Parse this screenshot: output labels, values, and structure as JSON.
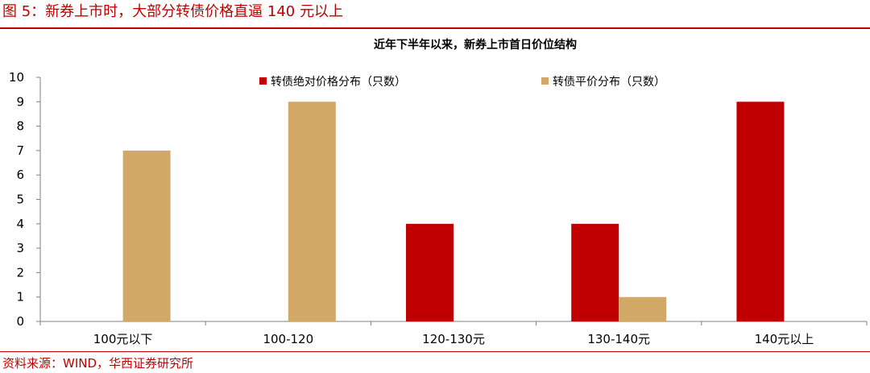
{
  "figure": {
    "title": "图 5：新券上市时，大部分转债价格直逼 140 元以上",
    "source": "资料来源：WIND，华西证券研究所"
  },
  "colors": {
    "accent": "#c00000",
    "series_abs": "#c00000",
    "series_parity": "#d1a866",
    "axis": "#808080"
  },
  "chart_data": {
    "type": "bar",
    "title": "近年下半年以来，新券上市首日价位结构",
    "categories": [
      "100元以下",
      "100-120",
      "120-130元",
      "130-140元",
      "140元以上"
    ],
    "series": [
      {
        "name": "转债绝对价格分布（只数）",
        "values": [
          0,
          0,
          4,
          4,
          9
        ]
      },
      {
        "name": "转债平价分布（只数）",
        "values": [
          7,
          9,
          0,
          1,
          0
        ]
      }
    ],
    "xlabel": "",
    "ylabel": "",
    "ylim": [
      0,
      10
    ],
    "yticks": [
      "0",
      "1",
      "2",
      "3",
      "4",
      "5",
      "6",
      "7",
      "8",
      "9",
      "10"
    ],
    "grid": false,
    "legend": "top"
  }
}
